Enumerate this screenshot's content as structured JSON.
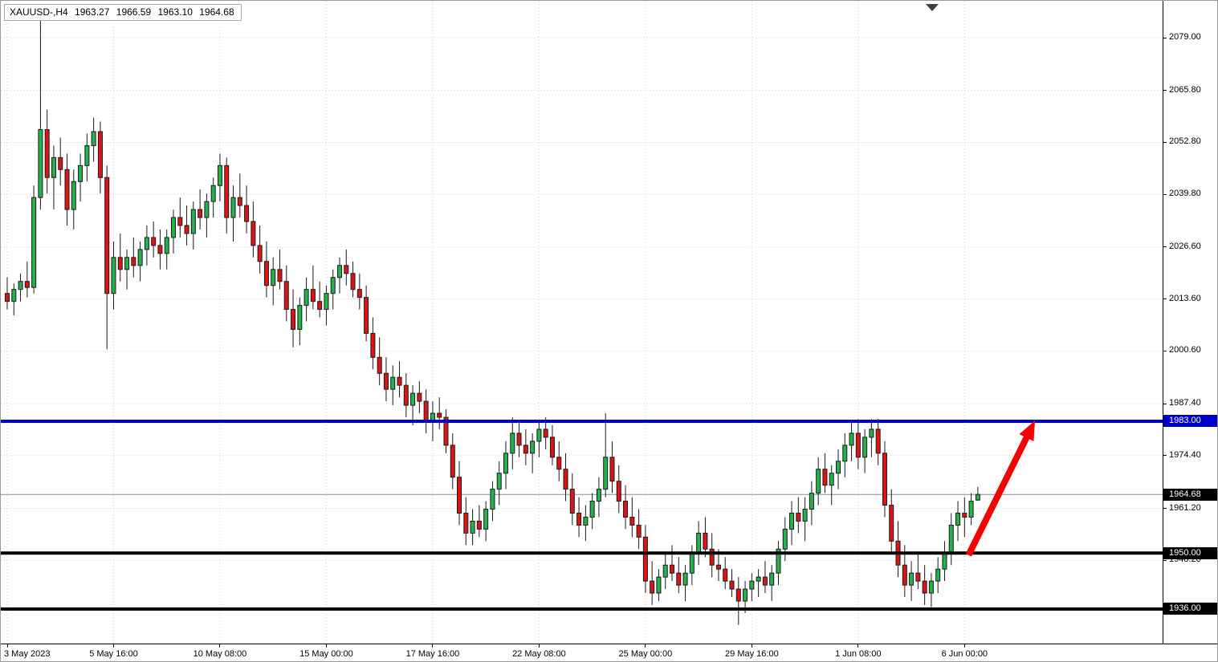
{
  "quote": {
    "symbol_period": "XAUUSD-,H4",
    "open": "1963.27",
    "high": "1966.59",
    "low": "1963.10",
    "close": "1964.68"
  },
  "chart_data": {
    "type": "candlestick",
    "symbol": "XAUUSD-",
    "timeframe": "H4",
    "price_axis": {
      "grid_labels": [
        2079.0,
        2065.8,
        2052.8,
        2039.8,
        2026.6,
        2013.6,
        2000.6,
        1987.4,
        1974.4,
        1961.2,
        1948.2
      ],
      "tags": [
        {
          "value": "1983.00",
          "price": 1983.0,
          "bg": "#0000CE"
        },
        {
          "value": "1964.68",
          "price": 1964.68,
          "bg": "#000000"
        },
        {
          "value": "1950.00",
          "price": 1950.0,
          "bg": "#000000"
        },
        {
          "value": "1936.00",
          "price": 1936.0,
          "bg": "#000000"
        }
      ]
    },
    "time_axis": {
      "ticks": [
        {
          "index": 0,
          "label": "3 May 2023"
        },
        {
          "index": 16,
          "label": "5 May 16:00"
        },
        {
          "index": 32,
          "label": "10 May 08:00"
        },
        {
          "index": 48,
          "label": "15 May 00:00"
        },
        {
          "index": 64,
          "label": "17 May 16:00"
        },
        {
          "index": 80,
          "label": "22 May 08:00"
        },
        {
          "index": 96,
          "label": "25 May 00:00"
        },
        {
          "index": 112,
          "label": "29 May 16:00"
        },
        {
          "index": 128,
          "label": "1 Jun 08:00"
        },
        {
          "index": 144,
          "label": "6 Jun 00:00"
        }
      ]
    },
    "hlines": [
      {
        "price": 1983.0,
        "color": "#0000CE",
        "thickness": 4
      },
      {
        "price": 1950.0,
        "color": "#000000",
        "thickness": 4
      },
      {
        "price": 1936.0,
        "color": "#000000",
        "thickness": 4
      }
    ],
    "current_price": 1964.68,
    "arrow": {
      "color": "#F60000",
      "from": {
        "index": 144.6,
        "price": 1949.5
      },
      "to": {
        "index": 154.6,
        "price": 1983.2
      }
    },
    "colors": {
      "up": "#25B24C",
      "down": "#DC1414",
      "wick": "#1a1a1a",
      "outline": "#1a1a1a",
      "grid": "#cdcdcd"
    },
    "y_range_hint": [
      1927.0,
      2088.0
    ],
    "candles": [
      [
        2015.0,
        2019.0,
        2011.0,
        2013.0
      ],
      [
        2013.0,
        2017.5,
        2009.5,
        2016.0
      ],
      [
        2016.0,
        2020.0,
        2013.0,
        2018.0
      ],
      [
        2018.0,
        2023.0,
        2014.0,
        2016.5
      ],
      [
        2016.5,
        2042.0,
        2015.0,
        2039.0
      ],
      [
        2039.0,
        2085.0,
        2036.0,
        2056.0
      ],
      [
        2056.0,
        2061.0,
        2040.0,
        2044.0
      ],
      [
        2044.0,
        2052.0,
        2036.0,
        2049.0
      ],
      [
        2049.0,
        2054.0,
        2042.0,
        2046.0
      ],
      [
        2046.0,
        2050.0,
        2032.0,
        2036.0
      ],
      [
        2036.0,
        2046.0,
        2031.0,
        2043.0
      ],
      [
        2043.0,
        2050.0,
        2038.0,
        2047.0
      ],
      [
        2047.0,
        2055.0,
        2043.0,
        2052.0
      ],
      [
        2052.0,
        2059.0,
        2048.0,
        2055.5
      ],
      [
        2055.5,
        2058.0,
        2040.0,
        2044.0
      ],
      [
        2044.0,
        2047.0,
        2001.0,
        2015.0
      ],
      [
        2015.0,
        2028.0,
        2011.0,
        2024.0
      ],
      [
        2024.0,
        2030.0,
        2018.0,
        2021.0
      ],
      [
        2021.0,
        2026.0,
        2016.0,
        2024.0
      ],
      [
        2024.0,
        2029.0,
        2019.0,
        2022.0
      ],
      [
        2022.0,
        2028.0,
        2018.0,
        2026.0
      ],
      [
        2026.0,
        2032.0,
        2022.0,
        2029.0
      ],
      [
        2029.0,
        2033.0,
        2024.0,
        2027.0
      ],
      [
        2027.0,
        2031.0,
        2021.0,
        2025.0
      ],
      [
        2025.0,
        2031.0,
        2021.0,
        2029.0
      ],
      [
        2029.0,
        2036.0,
        2025.0,
        2034.0
      ],
      [
        2034.0,
        2039.0,
        2029.0,
        2032.0
      ],
      [
        2032.0,
        2037.0,
        2027.0,
        2030.0
      ],
      [
        2030.0,
        2038.0,
        2026.0,
        2036.0
      ],
      [
        2036.0,
        2041.0,
        2031.0,
        2034.0
      ],
      [
        2034.0,
        2040.0,
        2029.0,
        2038.0
      ],
      [
        2038.0,
        2044.0,
        2034.0,
        2042.0
      ],
      [
        2042.0,
        2050.0,
        2038.0,
        2047.0
      ],
      [
        2047.0,
        2049.0,
        2030.0,
        2034.0
      ],
      [
        2034.0,
        2042.0,
        2028.0,
        2039.0
      ],
      [
        2039.0,
        2045.0,
        2034.0,
        2037.0
      ],
      [
        2037.0,
        2042.0,
        2030.0,
        2033.0
      ],
      [
        2033.0,
        2038.0,
        2024.0,
        2027.0
      ],
      [
        2027.0,
        2032.0,
        2020.0,
        2023.0
      ],
      [
        2023.0,
        2028.0,
        2014.0,
        2017.0
      ],
      [
        2017.0,
        2024.0,
        2012.0,
        2021.0
      ],
      [
        2021.0,
        2026.0,
        2016.0,
        2018.0
      ],
      [
        2018.0,
        2022.0,
        2008.0,
        2011.0
      ],
      [
        2011.0,
        2016.0,
        2001.5,
        2006.0
      ],
      [
        2006.0,
        2014.0,
        2002.0,
        2012.0
      ],
      [
        2012.0,
        2019.0,
        2008.0,
        2016.0
      ],
      [
        2016.0,
        2022.0,
        2011.0,
        2013.0
      ],
      [
        2013.0,
        2018.0,
        2009.0,
        2011.0
      ],
      [
        2011.0,
        2017.0,
        2007.0,
        2015.0
      ],
      [
        2015.0,
        2021.0,
        2011.0,
        2019.0
      ],
      [
        2019.0,
        2024.0,
        2015.0,
        2022.0
      ],
      [
        2022.0,
        2026.0,
        2017.0,
        2020.0
      ],
      [
        2020.0,
        2023.0,
        2014.0,
        2016.0
      ],
      [
        2016.0,
        2020.0,
        2011.0,
        2014.0
      ],
      [
        2014.0,
        2017.0,
        2003.0,
        2005.0
      ],
      [
        2005.0,
        2009.0,
        1996.0,
        1999.0
      ],
      [
        1999.0,
        2004.0,
        1992.0,
        1995.0
      ],
      [
        1995.0,
        1999.0,
        1988.0,
        1991.0
      ],
      [
        1991.0,
        1997.0,
        1987.0,
        1994.0
      ],
      [
        1994.0,
        1998.0,
        1989.0,
        1992.0
      ],
      [
        1992.0,
        1995.0,
        1984.0,
        1987.0
      ],
      [
        1987.0,
        1992.0,
        1982.0,
        1990.0
      ],
      [
        1990.0,
        1993.0,
        1985.0,
        1988.0
      ],
      [
        1988.0,
        1991.0,
        1980.0,
        1983.0
      ],
      [
        1983.0,
        1988.0,
        1978.0,
        1985.0
      ],
      [
        1985.0,
        1989.0,
        1981.0,
        1984.0
      ],
      [
        1984.0,
        1986.0,
        1975.0,
        1977.0
      ],
      [
        1977.0,
        1980.0,
        1966.0,
        1969.0
      ],
      [
        1969.0,
        1973.0,
        1957.0,
        1960.0
      ],
      [
        1960.0,
        1964.0,
        1952.0,
        1955.0
      ],
      [
        1955.0,
        1961.0,
        1952.0,
        1958.0
      ],
      [
        1958.0,
        1962.0,
        1954.0,
        1956.0
      ],
      [
        1956.0,
        1963.0,
        1953.0,
        1961.0
      ],
      [
        1961.0,
        1968.0,
        1958.0,
        1966.0
      ],
      [
        1966.0,
        1973.0,
        1962.0,
        1970.0
      ],
      [
        1970.0,
        1978.0,
        1966.0,
        1975.0
      ],
      [
        1975.0,
        1984.0,
        1971.0,
        1980.0
      ],
      [
        1980.0,
        1983.0,
        1974.0,
        1977.0
      ],
      [
        1977.0,
        1981.0,
        1972.0,
        1975.0
      ],
      [
        1975.0,
        1980.0,
        1970.0,
        1978.0
      ],
      [
        1978.0,
        1983.0,
        1974.0,
        1981.0
      ],
      [
        1981.0,
        1984.0,
        1976.0,
        1979.0
      ],
      [
        1979.0,
        1982.0,
        1972.0,
        1974.0
      ],
      [
        1974.0,
        1978.0,
        1968.0,
        1971.0
      ],
      [
        1971.0,
        1975.0,
        1963.0,
        1966.0
      ],
      [
        1966.0,
        1970.0,
        1957.0,
        1960.0
      ],
      [
        1960.0,
        1964.0,
        1954.0,
        1957.0
      ],
      [
        1957.0,
        1962.0,
        1953.0,
        1959.0
      ],
      [
        1959.0,
        1965.0,
        1956.0,
        1963.0
      ],
      [
        1963.0,
        1969.0,
        1959.0,
        1966.0
      ],
      [
        1966.0,
        1985.0,
        1964.0,
        1974.0
      ],
      [
        1974.0,
        1978.0,
        1965.0,
        1968.0
      ],
      [
        1968.0,
        1972.0,
        1960.0,
        1963.0
      ],
      [
        1963.0,
        1967.0,
        1956.0,
        1959.0
      ],
      [
        1959.0,
        1964.0,
        1954.0,
        1957.0
      ],
      [
        1957.0,
        1961.0,
        1951.0,
        1954.0
      ],
      [
        1954.0,
        1957.0,
        1940.0,
        1943.0
      ],
      [
        1943.0,
        1948.0,
        1937.0,
        1940.0
      ],
      [
        1940.0,
        1946.0,
        1938.0,
        1944.0
      ],
      [
        1944.0,
        1950.0,
        1941.0,
        1947.0
      ],
      [
        1947.0,
        1952.0,
        1943.0,
        1945.0
      ],
      [
        1945.0,
        1949.0,
        1940.0,
        1942.0
      ],
      [
        1942.0,
        1947.0,
        1938.0,
        1945.0
      ],
      [
        1945.0,
        1952.0,
        1942.0,
        1950.0
      ],
      [
        1950.0,
        1958.0,
        1947.0,
        1955.0
      ],
      [
        1955.0,
        1959.0,
        1949.0,
        1951.0
      ],
      [
        1951.0,
        1955.0,
        1944.0,
        1947.0
      ],
      [
        1947.0,
        1951.0,
        1943.0,
        1946.0
      ],
      [
        1946.0,
        1949.0,
        1941.0,
        1943.0
      ],
      [
        1943.0,
        1946.0,
        1939.0,
        1941.0
      ],
      [
        1941.0,
        1944.0,
        1932.0,
        1938.0
      ],
      [
        1938.0,
        1943.0,
        1935.0,
        1941.0
      ],
      [
        1941.0,
        1945.0,
        1938.0,
        1943.0
      ],
      [
        1943.0,
        1946.0,
        1939.0,
        1944.0
      ],
      [
        1944.0,
        1948.0,
        1940.0,
        1942.0
      ],
      [
        1942.0,
        1947.0,
        1938.0,
        1945.0
      ],
      [
        1945.0,
        1953.0,
        1942.0,
        1951.0
      ],
      [
        1951.0,
        1959.0,
        1948.0,
        1956.0
      ],
      [
        1956.0,
        1963.0,
        1952.0,
        1960.0
      ],
      [
        1960.0,
        1964.0,
        1955.0,
        1958.0
      ],
      [
        1958.0,
        1964.0,
        1953.0,
        1961.0
      ],
      [
        1961.0,
        1968.0,
        1957.0,
        1965.0
      ],
      [
        1965.0,
        1974.0,
        1962.0,
        1971.0
      ],
      [
        1971.0,
        1975.0,
        1965.0,
        1967.0
      ],
      [
        1967.0,
        1972.0,
        1962.0,
        1970.0
      ],
      [
        1970.0,
        1976.0,
        1966.0,
        1973.0
      ],
      [
        1973.0,
        1980.0,
        1969.0,
        1977.0
      ],
      [
        1977.0,
        1983.0,
        1973.0,
        1980.0
      ],
      [
        1980.0,
        1983.5,
        1971.0,
        1974.0
      ],
      [
        1974.0,
        1981.0,
        1970.0,
        1979.0
      ],
      [
        1979.0,
        1983.5,
        1974.0,
        1981.0
      ],
      [
        1981.0,
        1983.6,
        1972.0,
        1975.0
      ],
      [
        1975.0,
        1978.0,
        1959.0,
        1962.0
      ],
      [
        1962.0,
        1966.0,
        1950.0,
        1953.0
      ],
      [
        1953.0,
        1958.0,
        1944.0,
        1947.0
      ],
      [
        1947.0,
        1952.0,
        1939.0,
        1942.0
      ],
      [
        1942.0,
        1948.0,
        1938.0,
        1945.0
      ],
      [
        1945.0,
        1950.0,
        1941.0,
        1943.0
      ],
      [
        1943.0,
        1947.0,
        1937.0,
        1940.0
      ],
      [
        1940.0,
        1945.0,
        1936.5,
        1943.0
      ],
      [
        1943.0,
        1949.0,
        1940.0,
        1946.0
      ],
      [
        1946.0,
        1953.0,
        1943.0,
        1950.0
      ],
      [
        1950.0,
        1960.0,
        1947.0,
        1957.0
      ],
      [
        1957.0,
        1963.0,
        1953.0,
        1960.0
      ],
      [
        1960.0,
        1964.0,
        1954.0,
        1959.0
      ],
      [
        1959.0,
        1965.0,
        1957.0,
        1963.0
      ],
      [
        1963.27,
        1966.59,
        1963.1,
        1964.68
      ]
    ]
  }
}
